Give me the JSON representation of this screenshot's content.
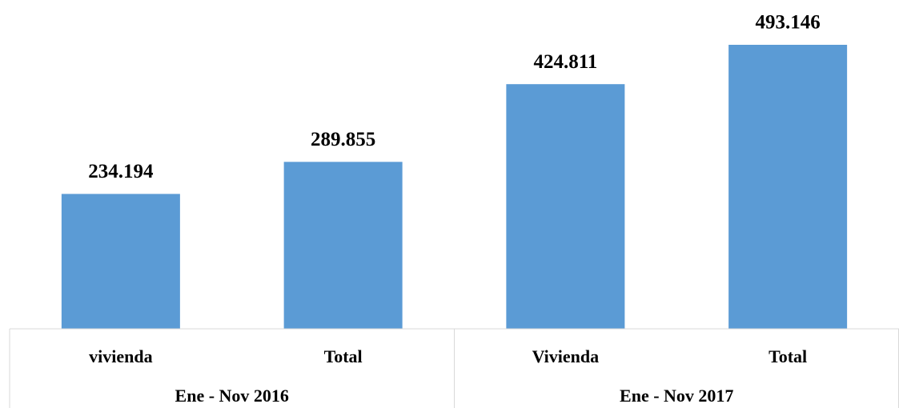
{
  "chart_data": {
    "type": "bar",
    "categories": [
      "vivienda",
      "Total",
      "Vivienda",
      "Total"
    ],
    "group_labels": [
      "Ene - Nov 2016",
      "Ene - Nov 2017"
    ],
    "values": [
      234194,
      289855,
      424811,
      493146
    ],
    "value_labels": [
      "234.194",
      "289.855",
      "424.811",
      "493.146"
    ],
    "color": "#5b9bd5"
  }
}
